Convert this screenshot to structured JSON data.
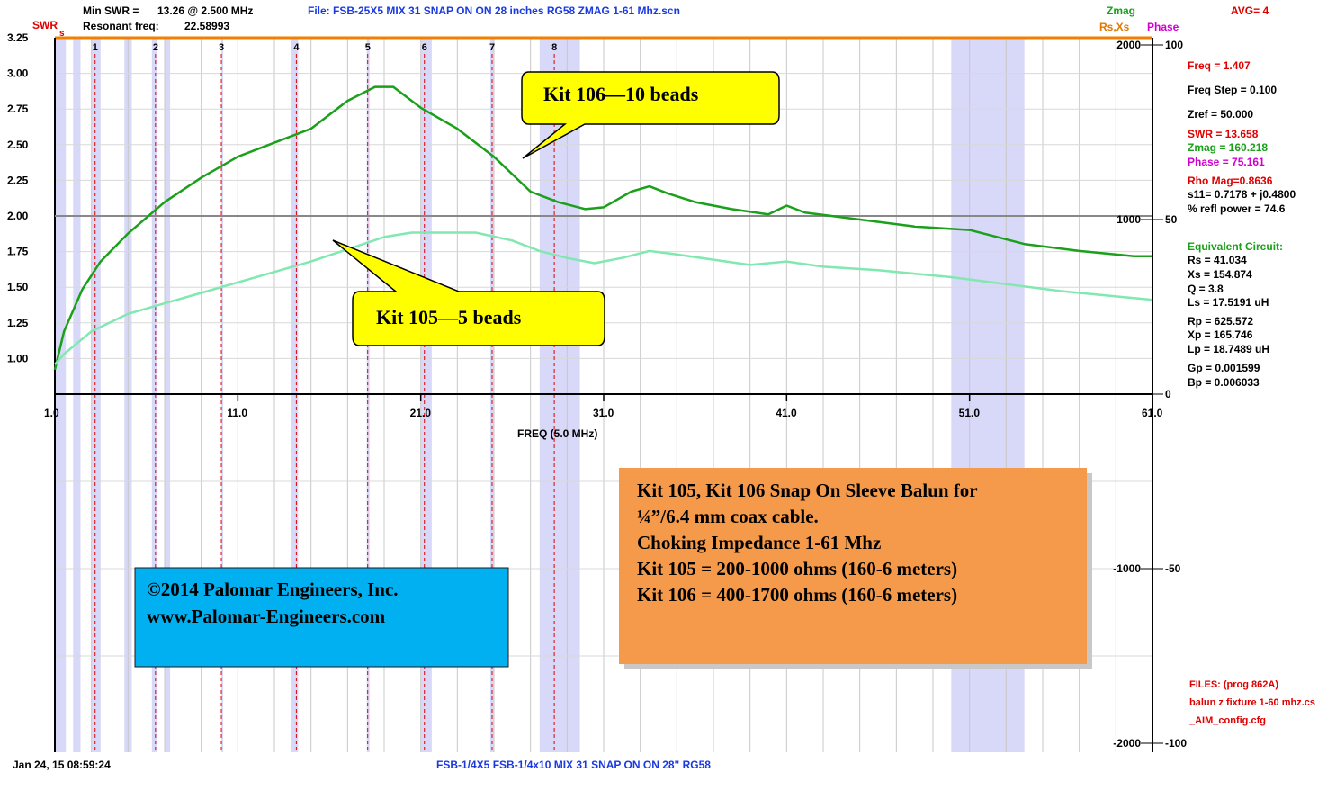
{
  "header": {
    "min_swr_label": "Min SWR =",
    "min_swr_value": "13.26 @  2.500 MHz",
    "resonant_label": "Resonant freq:",
    "resonant_value": "22.58993",
    "file_label": "File: FSB-25X5 MIX 31 SNAP ON ON 28 inches RG58 ZMAG 1-61 Mhz.scn",
    "zmag_label": "Zmag",
    "avg_label": "AVG=  4",
    "rsxs_label": "Rs,Xs",
    "phase_label": "Phase",
    "swr_axis_label": "SWR",
    "swr_axis_sub": "s"
  },
  "right_panel": {
    "freq": "Freq = 1.407",
    "freq_step": "Freq Step = 0.100",
    "zref": "Zref =    50.000",
    "swr": "SWR  =  13.658",
    "zmag": "Zmag  =  160.218",
    "phase": "Phase  =   75.161",
    "rho": "Rho Mag=0.8636",
    "s11": "s11= 0.7178 + j0.4800",
    "refl": "% refl power = 74.6",
    "equiv": "Equivalent Circuit:",
    "rs": "Rs =   41.034",
    "xs": "Xs =   154.874",
    "q": "Q =   3.8",
    "ls": "Ls =    17.5191 uH",
    "rp": "Rp =   625.572",
    "xp": "Xp =   165.746",
    "lp": "Lp =    18.7489  uH",
    "gp": "Gp =   0.001599",
    "bp": "Bp =   0.006033",
    "files": "FILES:  (prog 862A)",
    "file1": "balun z fixture 1-60 mhz.cs",
    "file2": "_AIM_config.cfg"
  },
  "footer": {
    "date": "Jan 24, 15   08:59:24",
    "caption": "FSB-1/4X5 FSB-1/4x10 MIX 31 SNAP ON ON 28\" RG58"
  },
  "callouts": {
    "kit106": "Kit 106—10 beads",
    "kit105": "Kit 105—5 beads"
  },
  "info_box": {
    "line1": "Kit 105, Kit 106 Snap On Sleeve Balun for",
    "line2": "¼”/6.4 mm coax cable.",
    "line3": "Choking Impedance 1-61 Mhz",
    "line4": "Kit 105 = 200-1000 ohms (160-6 meters)",
    "line5": "Kit 106 = 400-1700 ohms (160-6 meters)"
  },
  "copyright_box": {
    "line1": "©2014 Palomar Engineers, Inc.",
    "line2": "www.Palomar-Engineers.com"
  },
  "colors": {
    "kit106": "#1aa01a",
    "kit105": "#80e8b0",
    "marker": "#e00000",
    "band": "#d8d8f8",
    "top_border": "#f08000",
    "info_box": "#f59a4a",
    "copyright_box": "#00b0f0",
    "callout_fill": "#ffff00"
  },
  "chart_data": {
    "type": "line",
    "xlabel": "FREQ (5.0 MHz)",
    "xlim": [
      1.0,
      61.0
    ],
    "x_ticks": [
      "1.0",
      "11.0",
      "21.0",
      "31.0",
      "41.0",
      "51.0",
      "61.0"
    ],
    "swr_ticks": [
      "3.25",
      "3.00",
      "2.75",
      "2.50",
      "2.25",
      "2.00",
      "1.75",
      "1.50",
      "1.25",
      "1.00"
    ],
    "zmag_ticks": [
      "2000",
      "1000",
      "-1000",
      "-2000"
    ],
    "phase_ticks": [
      "100",
      "50",
      "0",
      "-50",
      "-100"
    ],
    "ylim_zmag": [
      -2000,
      2000
    ],
    "markers": [
      {
        "label": "1",
        "x": 3.2
      },
      {
        "label": "2",
        "x": 6.5
      },
      {
        "label": "3",
        "x": 10.1
      },
      {
        "label": "4",
        "x": 14.2
      },
      {
        "label": "5",
        "x": 18.1
      },
      {
        "label": "6",
        "x": 21.2
      },
      {
        "label": "7",
        "x": 24.9
      },
      {
        "label": "8",
        "x": 28.3
      }
    ],
    "bands": [
      [
        1.0,
        1.6
      ],
      [
        2.0,
        2.4
      ],
      [
        3.0,
        3.5
      ],
      [
        4.8,
        5.2
      ],
      [
        6.3,
        6.6
      ],
      [
        7.0,
        7.3
      ],
      [
        10.1,
        10.15
      ],
      [
        13.9,
        14.3
      ],
      [
        18.05,
        18.2
      ],
      [
        21.0,
        21.6
      ],
      [
        24.8,
        25.0
      ],
      [
        27.5,
        29.7
      ],
      [
        50.0,
        54.0
      ]
    ],
    "series": [
      {
        "name": "Kit 106—10 beads",
        "x": [
          1.0,
          1.5,
          2.5,
          3.5,
          5,
          7,
          9,
          11,
          13,
          15,
          17,
          18.5,
          19.5,
          21,
          23,
          25,
          27,
          28.5,
          30,
          31,
          32.5,
          33.5,
          34.5,
          36,
          38,
          40,
          41,
          42,
          45,
          48,
          51,
          54,
          57,
          60,
          61
        ],
        "y": [
          140,
          360,
          600,
          760,
          920,
          1100,
          1240,
          1360,
          1440,
          1520,
          1680,
          1760,
          1760,
          1640,
          1520,
          1360,
          1160,
          1100,
          1060,
          1070,
          1160,
          1190,
          1150,
          1100,
          1060,
          1030,
          1080,
          1040,
          1000,
          960,
          940,
          860,
          820,
          790,
          790
        ]
      },
      {
        "name": "Kit 105—5 beads",
        "x": [
          1.0,
          1.5,
          3,
          5,
          7,
          9,
          11,
          13,
          15,
          17,
          19,
          20.5,
          22,
          24,
          26,
          27.5,
          29,
          30.5,
          32,
          33.5,
          35,
          37,
          39,
          41,
          43,
          46,
          50,
          53,
          56,
          59,
          61
        ],
        "y": [
          170,
          230,
          360,
          460,
          520,
          580,
          640,
          700,
          760,
          830,
          900,
          925,
          925,
          925,
          880,
          820,
          780,
          750,
          780,
          820,
          800,
          770,
          740,
          760,
          730,
          710,
          670,
          630,
          590,
          560,
          540
        ]
      }
    ]
  }
}
